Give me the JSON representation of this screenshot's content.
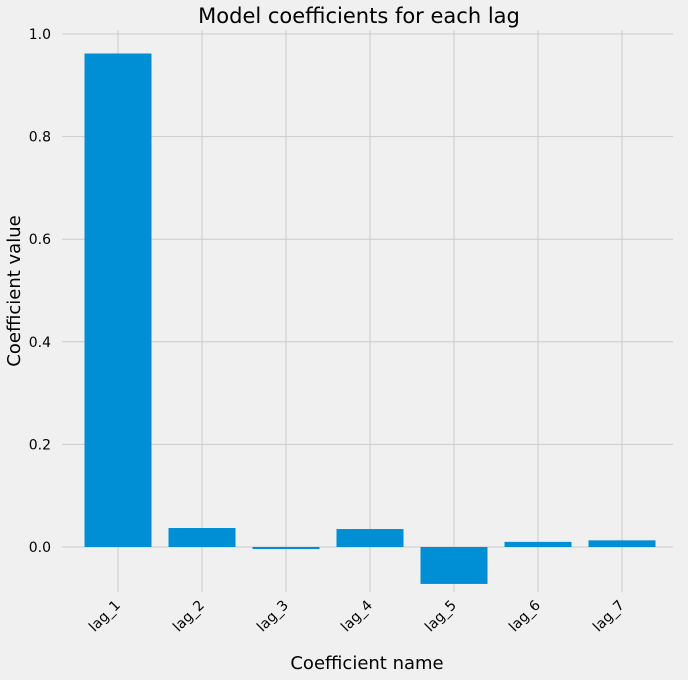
{
  "chart_data": {
    "type": "bar",
    "title": "Model coefficients for each lag",
    "xlabel": "Coefficient name",
    "ylabel": "Coefficient value",
    "categories": [
      "lag_1",
      "lag_2",
      "lag_3",
      "lag_4",
      "lag_5",
      "lag_6",
      "lag_7"
    ],
    "values": [
      0.962,
      0.037,
      -0.003,
      0.035,
      -0.072,
      0.01,
      0.013
    ],
    "yticks": [
      0.0,
      0.2,
      0.4,
      0.6,
      0.8,
      1.0
    ],
    "ytick_labels": [
      "0.0",
      "0.2",
      "0.4",
      "0.6",
      "0.8",
      "1.0"
    ],
    "ylim": [
      -0.12,
      1.0
    ],
    "grid": true,
    "colors": {
      "bar": "#008fd5",
      "background": "#f0f0f0",
      "grid": "#cbcbcb"
    }
  }
}
